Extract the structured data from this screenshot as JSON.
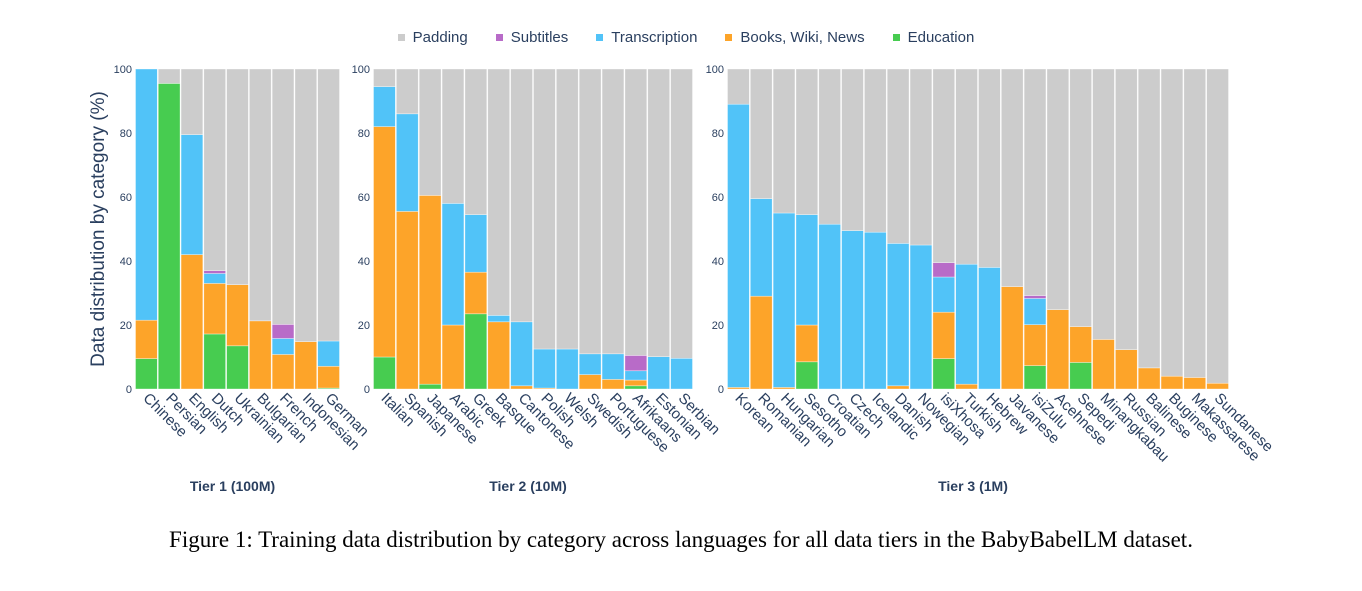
{
  "chart_data": {
    "type": "bar",
    "stacked": true,
    "ylabel": "Data distribution by category (%)",
    "ylim": [
      0,
      100
    ],
    "yticks": [
      0,
      20,
      40,
      60,
      80,
      100
    ],
    "grid": false,
    "legend_position": "top-center",
    "legend": [
      {
        "key": "padding",
        "label": "Padding",
        "color": "#cccccc"
      },
      {
        "key": "subtitles",
        "label": "Subtitles",
        "color": "#b86bc8"
      },
      {
        "key": "transcription",
        "label": "Transcription",
        "color": "#51c3f8"
      },
      {
        "key": "books",
        "label": "Books, Wiki, News",
        "color": "#fda429"
      },
      {
        "key": "education",
        "label": "Education",
        "color": "#47cc50"
      }
    ],
    "stack_order": [
      "education",
      "books",
      "transcription",
      "subtitles",
      "padding"
    ],
    "panels": [
      {
        "title": "Tier 1 (100M)",
        "categories": [
          "Chinese",
          "Persian",
          "English",
          "Dutch",
          "Ukrainian",
          "Bulgarian",
          "French",
          "Indonesian",
          "German"
        ],
        "series": [
          {
            "name": "Education",
            "values": [
              9.5,
              95.5,
              0,
              17.2,
              13.5,
              0,
              0,
              0,
              0.3
            ]
          },
          {
            "name": "Books, Wiki, News",
            "values": [
              12,
              0,
              42,
              15.8,
              19.1,
              21.3,
              10.8,
              14.8,
              6.8
            ]
          },
          {
            "name": "Transcription",
            "values": [
              78.5,
              0,
              37.5,
              3.1,
              0,
              0,
              5.0,
              0,
              7.9
            ]
          },
          {
            "name": "Subtitles",
            "values": [
              0,
              0,
              0,
              0.9,
              0,
              0,
              4.4,
              0,
              0
            ]
          },
          {
            "name": "Padding",
            "values": [
              0,
              4.5,
              20.5,
              63.0,
              67.4,
              78.7,
              79.8,
              85.2,
              85.0
            ]
          }
        ]
      },
      {
        "title": "Tier 2 (10M)",
        "categories": [
          "Italian",
          "Spanish",
          "Japanese",
          "Arabic",
          "Greek",
          "Basque",
          "Cantonese",
          "Polish",
          "Welsh",
          "Swedish",
          "Portuguese",
          "Afrikaans",
          "Estonian",
          "Serbian"
        ],
        "series": [
          {
            "name": "Education",
            "values": [
              10,
              0,
              1.5,
              0,
              23.5,
              0,
              0,
              0,
              0,
              0,
              0,
              1.0,
              0,
              0
            ]
          },
          {
            "name": "Books, Wiki, News",
            "values": [
              72,
              55.5,
              59,
              20,
              13,
              21,
              1,
              0.3,
              0,
              4.5,
              3,
              1.8,
              0,
              0
            ]
          },
          {
            "name": "Transcription",
            "values": [
              12.5,
              30.5,
              0,
              38,
              18,
              2,
              20,
              12.2,
              12.5,
              6.5,
              8,
              2.9,
              10.1,
              9.6
            ]
          },
          {
            "name": "Subtitles",
            "values": [
              0,
              0,
              0,
              0,
              0,
              0,
              0,
              0,
              0,
              0,
              0,
              4.8,
              0,
              0
            ]
          },
          {
            "name": "Padding",
            "values": [
              5.5,
              14,
              39.5,
              42,
              45.5,
              77,
              79,
              87.5,
              87.5,
              89,
              89,
              89.5,
              89.9,
              90.4
            ]
          }
        ]
      },
      {
        "title": "Tier 3 (1M)",
        "categories": [
          "Korean",
          "Romanian",
          "Hungarian",
          "Sesotho",
          "Croatian",
          "Czech",
          "Icelandic",
          "Danish",
          "Nowegian",
          "isiXhosa",
          "Turkish",
          "Hebrew",
          "Javanese",
          "isiZulu",
          "Acehnese",
          "Sepedi",
          "Minangkabau",
          "Russian",
          "Balinese",
          "Buginese",
          "Makassarese",
          "Sundanese"
        ],
        "series": [
          {
            "name": "Education",
            "values": [
              0,
              0,
              0,
              8.5,
              0,
              0,
              0,
              0,
              0,
              9.5,
              0,
              0,
              0,
              7.3,
              0,
              8.3,
              0,
              0,
              0,
              0,
              0,
              0
            ]
          },
          {
            "name": "Books, Wiki, News",
            "values": [
              0.5,
              29,
              0.5,
              11.5,
              0,
              0,
              0,
              1,
              0,
              14.5,
              1.5,
              0,
              32,
              12.8,
              24.8,
              11.2,
              15.5,
              12.3,
              6.6,
              4,
              3.6,
              1.8
            ]
          },
          {
            "name": "Transcription",
            "values": [
              88.5,
              30.5,
              54.5,
              34.5,
              51.5,
              49.5,
              49,
              44.5,
              45,
              11,
              37.5,
              38,
              0,
              8.2,
              0,
              0,
              0,
              0,
              0,
              0,
              0,
              0
            ]
          },
          {
            "name": "Subtitles",
            "values": [
              0,
              0,
              0,
              0,
              0,
              0,
              0,
              0,
              0,
              4.5,
              0,
              0,
              0,
              0.9,
              0,
              0,
              0,
              0,
              0,
              0,
              0,
              0
            ]
          },
          {
            "name": "Padding",
            "values": [
              11,
              40.5,
              45,
              45.5,
              48.5,
              50.5,
              51,
              54.5,
              55,
              60.5,
              61,
              62,
              68,
              70.8,
              75.2,
              80.5,
              84.5,
              87.7,
              93.4,
              96,
              96.4,
              98.2
            ]
          }
        ]
      }
    ]
  },
  "caption": "Figure 1: Training data distribution by category across languages for all data tiers in the BabyBabelLM dataset."
}
